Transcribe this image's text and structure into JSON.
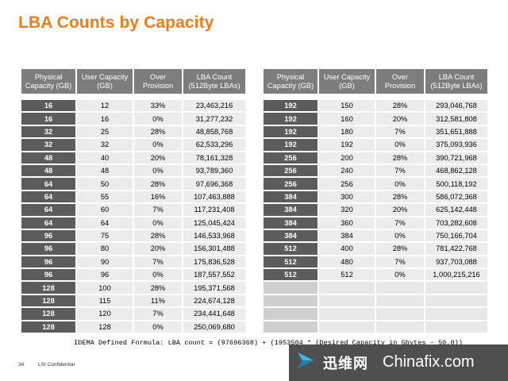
{
  "title": "LBA Counts by Capacity",
  "headers": [
    [
      "Physical",
      "Capacity (GB)"
    ],
    [
      "User Capacity",
      "(GB)"
    ],
    [
      "Over",
      "Provision"
    ],
    [
      "LBA Count",
      "(512Byte LBAs)"
    ]
  ],
  "left_table": [
    [
      "16",
      "12",
      "33%",
      "23,463,216"
    ],
    [
      "16",
      "16",
      "0%",
      "31,277,232"
    ],
    [
      "32",
      "25",
      "28%",
      "48,858,768"
    ],
    [
      "32",
      "32",
      "0%",
      "62,533,296"
    ],
    [
      "48",
      "40",
      "20%",
      "78,161,328"
    ],
    [
      "48",
      "48",
      "0%",
      "93,789,360"
    ],
    [
      "64",
      "50",
      "28%",
      "97,696,368"
    ],
    [
      "64",
      "55",
      "16%",
      "107,463,888"
    ],
    [
      "64",
      "60",
      "7%",
      "117,231,408"
    ],
    [
      "64",
      "64",
      "0%",
      "125,045,424"
    ],
    [
      "96",
      "75",
      "28%",
      "146,533,968"
    ],
    [
      "96",
      "80",
      "20%",
      "156,301,488"
    ],
    [
      "96",
      "90",
      "7%",
      "175,836,528"
    ],
    [
      "96",
      "96",
      "0%",
      "187,557,552"
    ],
    [
      "128",
      "100",
      "28%",
      "195,371,568"
    ],
    [
      "128",
      "115",
      "11%",
      "224,674,128"
    ],
    [
      "128",
      "120",
      "7%",
      "234,441,648"
    ],
    [
      "128",
      "128",
      "0%",
      "250,069,680"
    ]
  ],
  "right_table": [
    [
      "192",
      "150",
      "28%",
      "293,046,768"
    ],
    [
      "192",
      "160",
      "20%",
      "312,581,808"
    ],
    [
      "192",
      "180",
      "7%",
      "351,651,888"
    ],
    [
      "192",
      "192",
      "0%",
      "375,093,936"
    ],
    [
      "256",
      "200",
      "28%",
      "390,721,968"
    ],
    [
      "256",
      "240",
      "7%",
      "468,862,128"
    ],
    [
      "256",
      "256",
      "0%",
      "500,118,192"
    ],
    [
      "384",
      "300",
      "28%",
      "586,072,368"
    ],
    [
      "384",
      "320",
      "20%",
      "625,142,448"
    ],
    [
      "384",
      "360",
      "7%",
      "703,282,608"
    ],
    [
      "384",
      "384",
      "0%",
      "750,166,704"
    ],
    [
      "512",
      "400",
      "28%",
      "781,422,768"
    ],
    [
      "512",
      "480",
      "7%",
      "937,703,088"
    ],
    [
      "512",
      "512",
      "0%",
      "1,000,215,216"
    ],
    [
      "",
      "",
      "",
      ""
    ],
    [
      "",
      "",
      "",
      ""
    ],
    [
      "",
      "",
      "",
      ""
    ],
    [
      "",
      "",
      "",
      ""
    ]
  ],
  "formula": "IDEMA Defined Formula: LBA count = (97696368) + (1953504 * (Desired Capacity in Gbytes – 50.0))",
  "footer": {
    "page_number": "34",
    "confidential": "LSI Confidential"
  },
  "watermark": {
    "chinese_text": "迅维网",
    "english_text": "Chinafix.com",
    "accent_color": "#3fb5e8"
  },
  "colors": {
    "title": "#f07c1a",
    "header_bg": "#7d7d7d",
    "first_col_bg": "#5c5c5c",
    "cell_bg": "#ececec"
  }
}
